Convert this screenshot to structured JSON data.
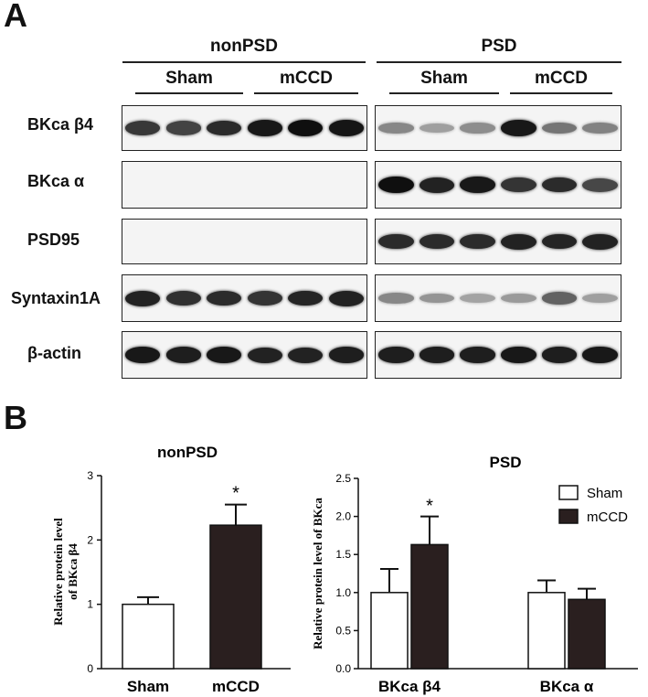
{
  "panel_a": {
    "letter": "A",
    "group_nonpsd": "nonPSD",
    "group_psd": "PSD",
    "sham": "Sham",
    "mccd": "mCCD",
    "rows": [
      {
        "label": "BKca β4",
        "nonpsd": [
          0.78,
          0.72,
          0.85,
          0.95,
          1.0,
          0.97
        ],
        "psd": [
          0.35,
          0.22,
          0.32,
          0.95,
          0.45,
          0.38
        ]
      },
      {
        "label": "BKca α",
        "nonpsd": [
          0,
          0,
          0,
          0,
          0,
          0
        ],
        "psd": [
          1.0,
          0.9,
          0.95,
          0.8,
          0.85,
          0.7
        ]
      },
      {
        "label": "PSD95",
        "nonpsd": [
          0,
          0,
          0,
          0,
          0,
          0
        ],
        "psd": [
          0.85,
          0.85,
          0.85,
          0.9,
          0.88,
          0.9
        ]
      },
      {
        "label": "Syntaxin1A",
        "nonpsd": [
          0.9,
          0.82,
          0.85,
          0.8,
          0.88,
          0.9
        ],
        "psd": [
          0.35,
          0.28,
          0.2,
          0.25,
          0.55,
          0.22
        ]
      },
      {
        "label": "β-actin",
        "nonpsd": [
          0.95,
          0.92,
          0.95,
          0.9,
          0.9,
          0.92
        ],
        "psd": [
          0.92,
          0.92,
          0.92,
          0.95,
          0.92,
          0.95
        ]
      }
    ]
  },
  "panel_b": {
    "letter": "B",
    "significance_mark": "*"
  },
  "chart_data": [
    {
      "type": "bar",
      "title": "nonPSD",
      "ylabel": "Relative protein level of BKca β4",
      "categories": [
        "Sham",
        "mCCD"
      ],
      "values": [
        1.0,
        2.23
      ],
      "errors": [
        0.11,
        0.32
      ],
      "significant": [
        false,
        true
      ],
      "ylim": [
        0,
        3
      ],
      "yticks": [
        "0",
        "1",
        "2",
        "3"
      ],
      "colors": [
        "#ffffff",
        "#2a1f1f"
      ]
    },
    {
      "type": "bar",
      "title": "PSD",
      "ylabel": "Relative protein level of BKca",
      "categories": [
        "BKca β4",
        "BKca α"
      ],
      "series": [
        {
          "name": "Sham",
          "values": [
            1.0,
            1.0
          ],
          "errors": [
            0.31,
            0.16
          ],
          "color": "#ffffff"
        },
        {
          "name": "mCCD",
          "values": [
            1.63,
            0.91
          ],
          "errors": [
            0.37,
            0.14
          ],
          "color": "#2a1f1f"
        }
      ],
      "significant": [
        [
          false,
          true
        ],
        [
          false,
          false
        ]
      ],
      "ylim": [
        0,
        2.5
      ],
      "yticks": [
        "0.0",
        "0.5",
        "1.0",
        "1.5",
        "2.0",
        "2.5"
      ],
      "legend_position": "top-right"
    }
  ]
}
